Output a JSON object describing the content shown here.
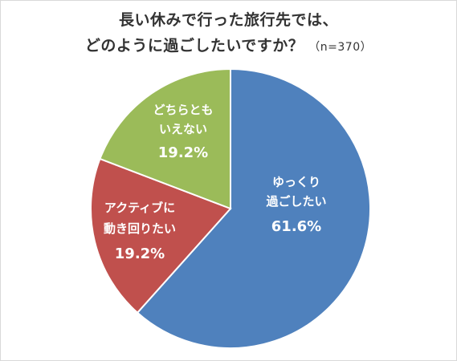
{
  "chart_data": {
    "type": "pie",
    "title_line1": "長い休みで行った旅行先では、",
    "title_line2": "どのように過ごしたいですか？",
    "sample_size": "（n=370）",
    "slices": [
      {
        "label_lines": [
          "ゆっくり",
          "過ごしたい"
        ],
        "value": 61.6,
        "value_label": "61.6%",
        "color": "#4f81bd"
      },
      {
        "label_lines": [
          "アクティブに",
          "動き回りたい"
        ],
        "value": 19.2,
        "value_label": "19.2%",
        "color": "#c0504d"
      },
      {
        "label_lines": [
          "どちらとも",
          "いえない"
        ],
        "value": 19.2,
        "value_label": "19.2%",
        "color": "#9bbb59"
      }
    ],
    "start_angle": "12 o'clock",
    "direction": "clockwise",
    "legend": "none"
  }
}
